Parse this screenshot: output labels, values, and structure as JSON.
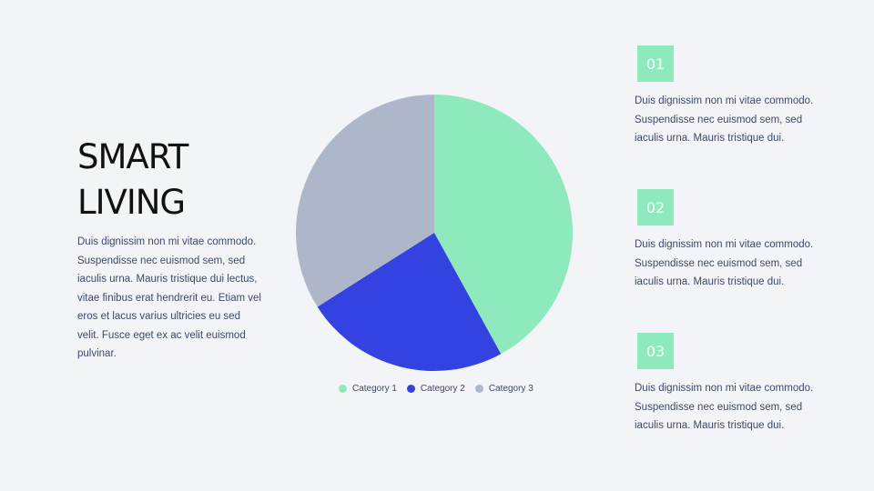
{
  "heading": {
    "line1": "SMART",
    "line2": "LIVING"
  },
  "intro_text": "Duis dignissim non mi vitae commodo. Suspendisse nec euismod sem, sed iaculis urna. Mauris tristique dui lectus, vitae finibus erat hendrerit eu. Etiam vel eros et lacus varius ultricies eu sed velit. Fusce eget ex ac velit euismod pulvinar.",
  "points": [
    {
      "number": "01",
      "text": "Duis dignissim non mi vitae commodo. Suspendisse nec euismod sem, sed iaculis urna. Mauris tristique dui."
    },
    {
      "number": "02",
      "text": "Duis dignissim non mi vitae commodo. Suspendisse nec euismod sem, sed iaculis urna. Mauris tristique dui."
    },
    {
      "number": "03",
      "text": "Duis dignissim non mi vitae commodo. Suspendisse nec euismod sem, sed iaculis urna. Mauris tristique dui."
    }
  ],
  "colors": {
    "accent": "#8eeabc",
    "background": "#f2f4f7"
  },
  "chart_data": {
    "type": "pie",
    "title": "",
    "categories": [
      "Category 1",
      "Category 2",
      "Category 3"
    ],
    "values": [
      42,
      24,
      34
    ],
    "colors": [
      "#8eeabc",
      "#3342e0",
      "#aeb7ca"
    ],
    "legend_position": "bottom"
  }
}
